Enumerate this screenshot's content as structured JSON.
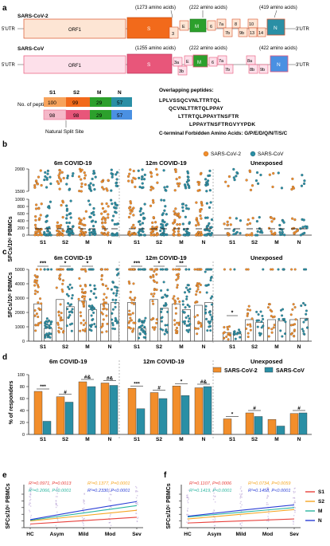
{
  "panels": {
    "a": {
      "letter": "a",
      "cov2": {
        "name": "SARS-CoV-2",
        "utr5": "5'UTR",
        "utr3": "3'UTR",
        "genes": [
          "ORF1",
          "S",
          "3",
          "E",
          "M",
          "6",
          "7a",
          "7b",
          "8",
          "9b",
          "10",
          "13",
          "14",
          "N"
        ],
        "annotations": [
          "(1273 amino acids)",
          "(222 amino acids)",
          "(419 amino acids)"
        ]
      },
      "cov": {
        "name": "SARS-CoV",
        "utr5": "5'UTR",
        "utr3": "3'UTR",
        "genes": [
          "ORF1",
          "S",
          "3a",
          "3b",
          "E",
          "M",
          "6",
          "7a",
          "7b",
          "8a",
          "8b",
          "9b",
          "N"
        ],
        "annotations": [
          "(1255 amino acids)",
          "(222 amino acids)",
          "(422 amino acids)"
        ]
      },
      "peptide_table": {
        "row_label": "No. of peptides",
        "headers": [
          "S1",
          "S2",
          "M",
          "N"
        ],
        "cov2_counts": [
          "100",
          "99",
          "29",
          "57"
        ],
        "cov_counts": [
          "98",
          "98",
          "29",
          "57"
        ],
        "split_label": "Natural Split Site"
      },
      "overlap": {
        "title": "Overlapping peptides:",
        "lines": [
          "LPLVSSQCVNLTTRTQL",
          "QCVNLTTRTQLPPAY",
          "LTTRTQLPPAYTNSFTR",
          "LPPAYTNSFTRGVYYPDK"
        ],
        "forbidden": "C-terminal Forbidden Amino Acids: G/P/E/D/Q/N/T/S/C"
      }
    },
    "b": {
      "letter": "b",
      "ylabel": "SFCs/10⁶ PBMCs",
      "groups": [
        "6m COVID-19",
        "12m COVID-19",
        "Unexposed"
      ],
      "categories": [
        "S1",
        "S2",
        "M",
        "N"
      ],
      "yticks_low": [
        "0",
        "200",
        "400",
        "600",
        "800",
        "1000"
      ],
      "yticks_high": [
        "1500",
        "2000"
      ],
      "legend": [
        "SARS-CoV-2",
        "SARS-CoV"
      ]
    },
    "c": {
      "letter": "c",
      "ylabel": "SFCs/10⁶ PBMCs",
      "groups": [
        "6m COVID-19",
        "12m COVID-19",
        "Unexposed"
      ],
      "categories": [
        "S1",
        "S2",
        "M",
        "N"
      ],
      "yticks": [
        "0",
        "1000",
        "2000",
        "3000",
        "4000",
        "5000"
      ],
      "sig": [
        "***",
        "*",
        "*",
        "***",
        "*",
        "**",
        "*"
      ]
    },
    "d": {
      "letter": "d",
      "ylabel": "% of responders",
      "groups": [
        "6m COVID-19",
        "12m COVID-19",
        "Unexposed"
      ],
      "legend": [
        "SARS-CoV-2",
        "SARS-CoV"
      ],
      "yticks": [
        "0",
        "20",
        "40",
        "60",
        "80",
        "100"
      ],
      "sig": [
        "***",
        "#",
        "#&",
        "#&",
        "***",
        "#",
        "*",
        "#&",
        "*",
        "#",
        "#"
      ]
    },
    "e": {
      "letter": "e",
      "ylabel": "SFCs/10⁶ PBMCs",
      "xcats": [
        "HC",
        "Asym",
        "Mild",
        "Mod",
        "Sev"
      ],
      "yticks": [
        "0",
        "1000",
        "2000",
        "3000",
        "4000",
        "5000"
      ],
      "stats": [
        "R²=0.0971, P=0.0013",
        "R²=0.1377, P=0.0001",
        "R²=0.2066, P<0.0001",
        "R²=0.2330, P<0.0001"
      ]
    },
    "f": {
      "letter": "f",
      "ylabel": "SFCs/10⁶ PBMCs",
      "xcats": [
        "HC",
        "Asym",
        "Mild",
        "Mod",
        "Sev"
      ],
      "yticks": [
        "0",
        "1000",
        "2000",
        "3000",
        "4000",
        "5000"
      ],
      "stats": [
        "R²=0.1107, P=0.0006",
        "R²=0.0734, P=0.0059",
        "R²=0.1419, P<0.0001",
        "R²=0.1458, P<0.0001"
      ],
      "legend": [
        "S1",
        "S2",
        "M",
        "N"
      ]
    }
  },
  "colors": {
    "orange": "#f28e2b",
    "teal": "#2a8fa5",
    "pink": "#e8567a",
    "green": "#2ca02c",
    "blue": "#4a90e2",
    "S1": "#e8413c",
    "S2": "#f5a623",
    "M": "#2ab5a0",
    "N": "#2b3fd6"
  },
  "chart_data": [
    {
      "type": "bar",
      "title": "",
      "ylabel": "% of responders",
      "categories": [
        "6m S1",
        "6m S2",
        "6m M",
        "6m N",
        "12m S1",
        "12m S2",
        "12m M",
        "12m N",
        "Unexp S1",
        "Unexp S2",
        "Unexp M",
        "Unexp N"
      ],
      "series": [
        {
          "name": "SARS-CoV-2",
          "values": [
            72,
            63,
            88,
            86,
            77,
            70,
            81,
            78,
            26,
            36,
            25,
            35
          ]
        },
        {
          "name": "SARS-CoV",
          "values": [
            22,
            54,
            80,
            82,
            43,
            60,
            65,
            80,
            0,
            30,
            14,
            36
          ]
        }
      ],
      "ylim": [
        0,
        100
      ]
    },
    {
      "type": "bar",
      "title": "",
      "ylabel": "SFCs/10⁶ PBMCs",
      "categories": [
        "6m S1",
        "6m S2",
        "6m M",
        "6m N",
        "12m S1",
        "12m S2",
        "12m M",
        "12m N",
        "Unexp S1",
        "Unexp S2",
        "Unexp M",
        "Unexp N"
      ],
      "series": [
        {
          "name": "SARS-CoV-2",
          "values": [
            2600,
            2900,
            2800,
            2600,
            2700,
            2900,
            2600,
            2500,
            600,
            1500,
            1500,
            1500
          ]
        },
        {
          "name": "SARS-CoV",
          "values": [
            900,
            2400,
            2200,
            2700,
            900,
            2300,
            2200,
            2700,
            500,
            1300,
            1400,
            1600
          ]
        }
      ],
      "ylim": [
        0,
        5000
      ]
    },
    {
      "type": "line",
      "title": "",
      "ylabel": "SFCs/10⁶ PBMCs",
      "x": [
        "HC",
        "Asym",
        "Mild",
        "Mod",
        "Sev"
      ],
      "series": [
        {
          "name": "S1",
          "values": [
            550,
            800,
            1050,
            1300,
            1550
          ]
        },
        {
          "name": "S2",
          "values": [
            1000,
            1400,
            1800,
            2200,
            2600
          ]
        },
        {
          "name": "M",
          "values": [
            1100,
            1650,
            2200,
            2750,
            3300
          ]
        },
        {
          "name": "N",
          "values": [
            1200,
            1900,
            2600,
            3250,
            3900
          ]
        }
      ],
      "ylim": [
        0,
        5000
      ]
    },
    {
      "type": "line",
      "title": "",
      "ylabel": "SFCs/10⁶ PBMCs",
      "x": [
        "HC",
        "Asym",
        "Mild",
        "Mod",
        "Sev"
      ],
      "series": [
        {
          "name": "S1",
          "values": [
            700,
            850,
            1000,
            1150,
            1300
          ]
        },
        {
          "name": "S2",
          "values": [
            1300,
            1650,
            2000,
            2350,
            2700
          ]
        },
        {
          "name": "M",
          "values": [
            1600,
            1950,
            2300,
            2650,
            3000
          ]
        },
        {
          "name": "N",
          "values": [
            1700,
            2150,
            2600,
            3000,
            3400
          ]
        }
      ],
      "ylim": [
        0,
        5000
      ]
    }
  ]
}
